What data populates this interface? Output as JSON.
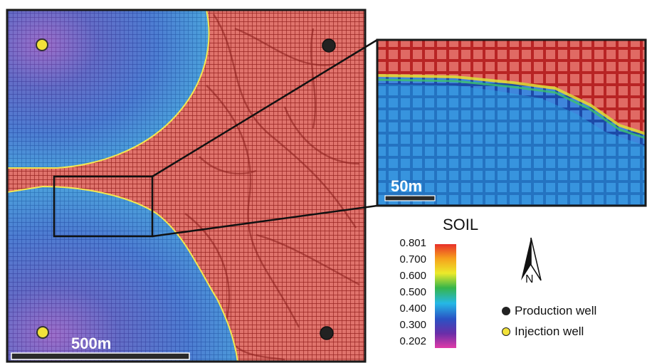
{
  "scale_bars": {
    "main_label": "500m",
    "inset_label": "50m"
  },
  "legend": {
    "title": "SOIL",
    "ticks": [
      "0.801",
      "0.700",
      "0.600",
      "0.500",
      "0.400",
      "0.300",
      "0.202"
    ],
    "colors": [
      "#e8302a",
      "#f6a21c",
      "#ecea2a",
      "#36b54a",
      "#25b8e6",
      "#2a52c4",
      "#6a2ea8",
      "#e03aa8"
    ]
  },
  "north_arrow": {
    "label": "N"
  },
  "wells": {
    "production": {
      "label": "Production well",
      "color": "#222222"
    },
    "injection": {
      "label": "Injection well",
      "color": "#f2e23a"
    }
  },
  "colors": {
    "oil_red": "#c0312f",
    "water_blue": "#3a67c2",
    "frame": "#1a1a1a"
  }
}
